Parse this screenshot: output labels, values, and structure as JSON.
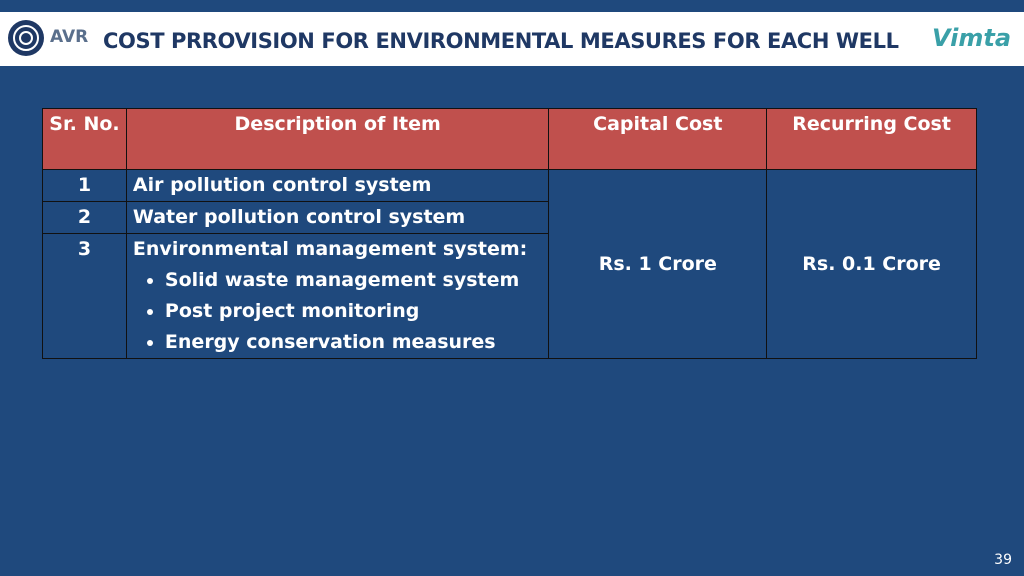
{
  "header": {
    "logo_left": "AVR",
    "title": "COST PRROVISION FOR ENVIRONMENTAL MEASURES FOR EACH WELL",
    "logo_right": "Vimta"
  },
  "table": {
    "columns": [
      "Sr. No.",
      "Description of Item",
      "Capital Cost",
      "Recurring Cost"
    ],
    "rows": [
      {
        "sr": "1",
        "description": "Air pollution control system"
      },
      {
        "sr": "2",
        "description": "Water pollution control system"
      },
      {
        "sr": "3",
        "description": "Environmental management system:",
        "bullets": [
          "Solid waste management system",
          "Post project monitoring",
          "Energy conservation measures"
        ]
      }
    ],
    "capital_cost": "Rs. 1 Crore",
    "recurring_cost": "Rs. 0.1 Crore"
  },
  "page_number": "39"
}
